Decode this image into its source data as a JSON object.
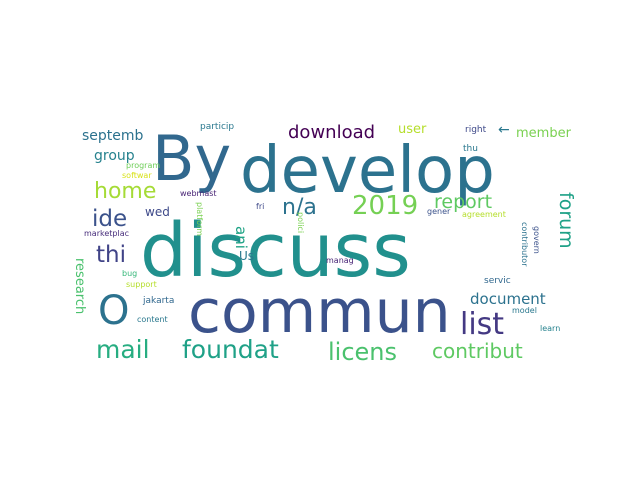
{
  "words": [
    {
      "text": "discuss",
      "color": "#21908d"
    },
    {
      "text": "develop",
      "color": "#2c728e"
    },
    {
      "text": "By",
      "color": "#31688e"
    },
    {
      "text": "commun",
      "color": "#3b528b"
    },
    {
      "text": "O",
      "color": "#2c728e"
    },
    {
      "text": "foundat",
      "color": "#1fa187"
    },
    {
      "text": "mail",
      "color": "#27ad81"
    },
    {
      "text": "list",
      "color": "#443983"
    },
    {
      "text": "licens",
      "color": "#4ac16d"
    },
    {
      "text": "contribut",
      "color": "#5ec962"
    },
    {
      "text": "2019",
      "color": "#75d054"
    },
    {
      "text": "home",
      "color": "#a5db36"
    },
    {
      "text": "n/a",
      "color": "#2c728e"
    },
    {
      "text": "forum",
      "color": "#1fa187"
    },
    {
      "text": "ide",
      "color": "#3b528b"
    },
    {
      "text": "thi",
      "color": "#404387"
    },
    {
      "text": "report",
      "color": "#5ec962"
    },
    {
      "text": "download",
      "color": "#440154"
    },
    {
      "text": "document",
      "color": "#2c728e"
    },
    {
      "text": "ani",
      "color": "#20a386"
    },
    {
      "text": "septemb",
      "color": "#2c728e"
    },
    {
      "text": "group",
      "color": "#26828e"
    },
    {
      "text": "member",
      "color": "#7ad151"
    },
    {
      "text": "user",
      "color": "#b5de2b"
    },
    {
      "text": "research",
      "color": "#4ac16d"
    },
    {
      "text": "wed",
      "color": "#3e4989"
    },
    {
      "text": "Us",
      "color": "#2a788e"
    },
    {
      "text": "←",
      "color": "#2a788e"
    },
    {
      "text": "right",
      "color": "#3e4989"
    },
    {
      "text": "particip",
      "color": "#2a788e"
    },
    {
      "text": "thu",
      "color": "#2a788e"
    },
    {
      "text": "webmast",
      "color": "#482475"
    },
    {
      "text": "program",
      "color": "#6ece58"
    },
    {
      "text": "softwar",
      "color": "#d8e219"
    },
    {
      "text": "marketplac",
      "color": "#472d7b"
    },
    {
      "text": "platform",
      "color": "#7ad151"
    },
    {
      "text": "fri",
      "color": "#3e4989"
    },
    {
      "text": "polici",
      "color": "#7ad151"
    },
    {
      "text": "bug",
      "color": "#35b779"
    },
    {
      "text": "support",
      "color": "#b5de2b"
    },
    {
      "text": "jakarta",
      "color": "#31688e"
    },
    {
      "text": "content",
      "color": "#2a788e"
    },
    {
      "text": "manag",
      "color": "#482475"
    },
    {
      "text": "gener",
      "color": "#3b528b"
    },
    {
      "text": "agreement",
      "color": "#b5de2b"
    },
    {
      "text": "contributor",
      "color": "#2c728e"
    },
    {
      "text": "govern",
      "color": "#3b528b"
    },
    {
      "text": "servic",
      "color": "#31688e"
    },
    {
      "text": "model",
      "color": "#2a788e"
    },
    {
      "text": "learn",
      "color": "#26828e"
    }
  ]
}
